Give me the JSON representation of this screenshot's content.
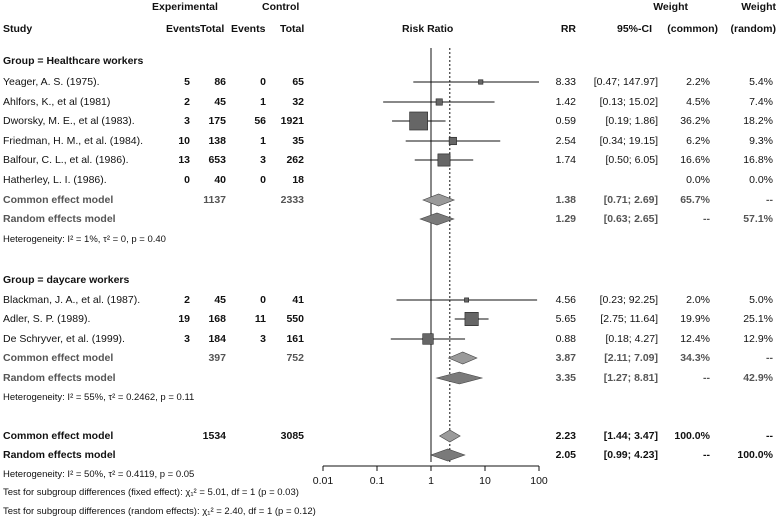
{
  "header": {
    "experimental": "Experimental",
    "control": "Control",
    "study": "Study",
    "events_e": "Events",
    "total_e": "Total",
    "events_c": "Events",
    "total_c": "Total",
    "risk_ratio": "Risk Ratio",
    "rr": "RR",
    "ci": "95%-CI",
    "weight_top": "Weight",
    "weight_common": "(common)",
    "weight_top2": "Weight",
    "weight_random": "(random)"
  },
  "groups": [
    {
      "title": "Group = Healthcare workers",
      "studies": [
        {
          "name": "Yeager, A. S. (1975).",
          "ev_e": "5",
          "tot_e": "86",
          "ev_c": "0",
          "tot_c": "65",
          "rr": "8.33",
          "ci": "[0.47; 147.97]",
          "w_common": "2.2%",
          "w_random": "5.4%"
        },
        {
          "name": "Ahlfors, K., et al (1981)",
          "ev_e": "2",
          "tot_e": "45",
          "ev_c": "1",
          "tot_c": "32",
          "rr": "1.42",
          "ci": "[0.13; 15.02]",
          "w_common": "4.5%",
          "w_random": "7.4%"
        },
        {
          "name": "Dworsky, M. E., et al (1983).",
          "ev_e": "3",
          "tot_e": "175",
          "ev_c": "56",
          "tot_c": "1921",
          "rr": "0.59",
          "ci": "[0.19; 1.86]",
          "w_common": "36.2%",
          "w_random": "18.2%"
        },
        {
          "name": "Friedman, H. M., et al. (1984).",
          "ev_e": "10",
          "tot_e": "138",
          "ev_c": "1",
          "tot_c": "35",
          "rr": "2.54",
          "ci": "[0.34; 19.15]",
          "w_common": "6.2%",
          "w_random": "9.3%"
        },
        {
          "name": "Balfour, C. L., et al. (1986).",
          "ev_e": "13",
          "tot_e": "653",
          "ev_c": "3",
          "tot_c": "262",
          "rr": "1.74",
          "ci": "[0.50; 6.05]",
          "w_common": "16.6%",
          "w_random": "16.8%"
        },
        {
          "name": "Hatherley, L. I. (1986).",
          "ev_e": "0",
          "tot_e": "40",
          "ev_c": "0",
          "tot_c": "18",
          "rr": "",
          "ci": "",
          "w_common": "0.0%",
          "w_random": "0.0%"
        }
      ],
      "common": {
        "label": "Common effect model",
        "tot_e": "1137",
        "tot_c": "2333",
        "rr": "1.38",
        "ci": "[0.71; 2.69]",
        "w_common": "65.7%",
        "w_random": "--"
      },
      "random": {
        "label": "Random effects model",
        "rr": "1.29",
        "ci": "[0.63; 2.65]",
        "w_common": "--",
        "w_random": "57.1%"
      },
      "heterogeneity": "Heterogeneity: I² = 1%, τ² = 0, p = 0.40"
    },
    {
      "title": "Group = daycare workers",
      "studies": [
        {
          "name": "Blackman, J. A., et al. (1987).",
          "ev_e": "2",
          "tot_e": "45",
          "ev_c": "0",
          "tot_c": "41",
          "rr": "4.56",
          "ci": "[0.23; 92.25]",
          "w_common": "2.0%",
          "w_random": "5.0%"
        },
        {
          "name": "Adler, S. P. (1989).",
          "ev_e": "19",
          "tot_e": "168",
          "ev_c": "11",
          "tot_c": "550",
          "rr": "5.65",
          "ci": "[2.75; 11.64]",
          "w_common": "19.9%",
          "w_random": "25.1%"
        },
        {
          "name": "De Schryver, et al. (1999).",
          "ev_e": "3",
          "tot_e": "184",
          "ev_c": "3",
          "tot_c": "161",
          "rr": "0.88",
          "ci": "[0.18; 4.27]",
          "w_common": "12.4%",
          "w_random": "12.9%"
        }
      ],
      "common": {
        "label": "Common effect model",
        "tot_e": "397",
        "tot_c": "752",
        "rr": "3.87",
        "ci": "[2.11; 7.09]",
        "w_common": "34.3%",
        "w_random": "--"
      },
      "random": {
        "label": "Random effects model",
        "rr": "3.35",
        "ci": "[1.27; 8.81]",
        "w_common": "--",
        "w_random": "42.9%"
      },
      "heterogeneity": "Heterogeneity: I² = 55%, τ² = 0.2462, p = 0.11"
    }
  ],
  "overall": {
    "common": {
      "label": "Common effect model",
      "tot_e": "1534",
      "tot_c": "3085",
      "rr": "2.23",
      "ci": "[1.44; 3.47]",
      "w_common": "100.0%",
      "w_random": "--"
    },
    "random": {
      "label": "Random effects model",
      "rr": "2.05",
      "ci": "[0.99; 4.23]",
      "w_common": "--",
      "w_random": "100.0%"
    },
    "heterogeneity": "Heterogeneity: I² = 50%, τ² = 0.4119, p = 0.05",
    "test_fixed": "Test for subgroup differences (fixed effect): χ₁² = 5.01, df = 1 (p = 0.03)",
    "test_random": "Test for subgroup differences (random effects): χ₁² = 2.40, df = 1 (p = 0.12)"
  },
  "chart_data": {
    "type": "forest",
    "title": "Risk Ratio",
    "scale": "log",
    "xlim": [
      0.01,
      100
    ],
    "ticks": [
      0.01,
      0.1,
      1,
      10,
      100
    ],
    "tick_labels": [
      "0.01",
      "0.1",
      "1",
      "10",
      "100"
    ],
    "null_value": 1,
    "overall_common_rr": 2.23,
    "studies": [
      {
        "name": "Yeager, A. S. (1975).",
        "rr": 8.33,
        "lo": 0.47,
        "hi": 147.97,
        "w": 2.2
      },
      {
        "name": "Ahlfors, K., et al (1981)",
        "rr": 1.42,
        "lo": 0.13,
        "hi": 15.02,
        "w": 4.5
      },
      {
        "name": "Dworsky, M. E., et al (1983).",
        "rr": 0.59,
        "lo": 0.19,
        "hi": 1.86,
        "w": 36.2
      },
      {
        "name": "Friedman, H. M., et al. (1984).",
        "rr": 2.54,
        "lo": 0.34,
        "hi": 19.15,
        "w": 6.2
      },
      {
        "name": "Balfour, C. L., et al. (1986).",
        "rr": 1.74,
        "lo": 0.5,
        "hi": 6.05,
        "w": 16.6
      },
      {
        "name": "Blackman, J. A., et al. (1987).",
        "rr": 4.56,
        "lo": 0.23,
        "hi": 92.25,
        "w": 2.0
      },
      {
        "name": "Adler, S. P. (1989).",
        "rr": 5.65,
        "lo": 2.75,
        "hi": 11.64,
        "w": 19.9
      },
      {
        "name": "De Schryver, et al. (1999).",
        "rr": 0.88,
        "lo": 0.18,
        "hi": 4.27,
        "w": 12.4
      }
    ],
    "summaries": [
      {
        "name": "Healthcare common",
        "rr": 1.38,
        "lo": 0.71,
        "hi": 2.69
      },
      {
        "name": "Healthcare random",
        "rr": 1.29,
        "lo": 0.63,
        "hi": 2.65
      },
      {
        "name": "Daycare common",
        "rr": 3.87,
        "lo": 2.11,
        "hi": 7.09
      },
      {
        "name": "Daycare random",
        "rr": 3.35,
        "lo": 1.27,
        "hi": 8.81
      },
      {
        "name": "Overall common",
        "rr": 2.23,
        "lo": 1.44,
        "hi": 3.47
      },
      {
        "name": "Overall random",
        "rr": 2.05,
        "lo": 0.99,
        "hi": 4.23
      }
    ]
  }
}
